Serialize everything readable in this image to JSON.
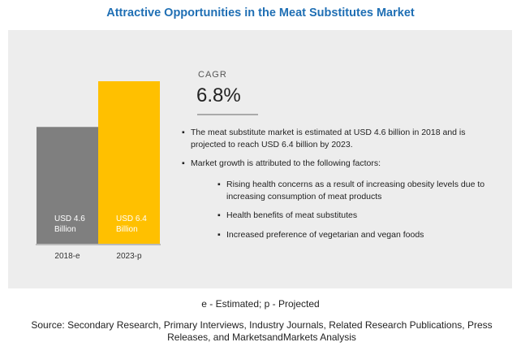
{
  "title": "Attractive Opportunities in the Meat Substitutes Market",
  "cagr": {
    "label": "CAGR",
    "value": "6.8%"
  },
  "points": [
    "The meat substitute market is estimated at USD 4.6 billion in 2018 and is projected to reach USD 6.4 billion by 2023.",
    "Market growth is attributed to the following factors:"
  ],
  "factors": [
    "Rising health concerns as a result of increasing obesity levels due to increasing consumption of meat products",
    "Health benefits of meat substitutes",
    "Increased preference of vegetarian and vegan foods"
  ],
  "bullet_symbol": "▪",
  "footnote": "e - Estimated; p - Projected",
  "source": "Source: Secondary Research, Primary Interviews, Industry Journals, Related Research Publications, Press Releases, and MarketsandMarkets Analysis",
  "colors": {
    "title": "#1f6fb4",
    "bar_2018": "#7f7f7f",
    "bar_2023": "#ffc000",
    "panel": "#ededed"
  },
  "chart_data": {
    "type": "bar",
    "categories": [
      "2018-e",
      "2023-p"
    ],
    "values": [
      4.6,
      6.4
    ],
    "unit": "USD billion",
    "data_labels": [
      [
        "USD 4.6",
        "Billion"
      ],
      [
        "USD 6.4",
        "Billion"
      ]
    ],
    "bar_colors": [
      "#7f7f7f",
      "#ffc000"
    ],
    "ylim": [
      0,
      6.4
    ],
    "grid": false,
    "legend": "none"
  }
}
